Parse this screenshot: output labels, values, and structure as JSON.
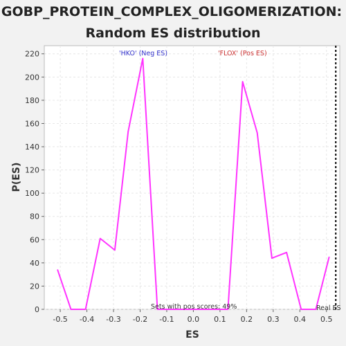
{
  "chart_data": {
    "type": "line",
    "title": "GOBP_PROTEIN_COMPLEX_OLIGOMERIZATION: Random ES distribution",
    "title_lines": [
      "GOBP_PROTEIN_COMPLEX_OLIGOMERIZATION:",
      "Random ES distribution"
    ],
    "xlabel": "ES",
    "ylabel": "P(ES)",
    "xlim": [
      -0.56,
      0.55
    ],
    "ylim": [
      0,
      227
    ],
    "x_ticks": [
      -0.5,
      -0.4,
      -0.3,
      -0.2,
      -0.1,
      0.0,
      0.1,
      0.2,
      0.3,
      0.4,
      0.5
    ],
    "x_tick_labels": [
      "-0.5",
      "-0.4",
      "-0.3",
      "-0.2",
      "-0.1",
      "0.0",
      "0.1",
      "0.2",
      "0.3",
      "0.4",
      "0.5"
    ],
    "y_ticks": [
      0,
      20,
      40,
      60,
      80,
      100,
      120,
      140,
      160,
      180,
      200,
      220
    ],
    "y_tick_labels": [
      "0",
      "20",
      "40",
      "60",
      "80",
      "100",
      "120",
      "140",
      "160",
      "180",
      "200",
      "220"
    ],
    "grid": true,
    "series": [
      {
        "color": "#ff33ff",
        "x": [
          -0.51,
          -0.46,
          -0.405,
          -0.35,
          -0.295,
          -0.245,
          -0.19,
          -0.135,
          -0.08,
          0.13,
          0.185,
          0.24,
          0.295,
          0.35,
          0.405,
          0.46,
          0.51
        ],
        "y": [
          34,
          0,
          0,
          61,
          51,
          153,
          216,
          0,
          0,
          0,
          196,
          152,
          44,
          49,
          0,
          0,
          45
        ]
      }
    ],
    "real_es": 0.535,
    "annotations": {
      "neg_label": "'HKO' (Neg ES)",
      "pos_label": "'FLOX' (Pos ES)",
      "sets_text": "Sets with pos scores: 49%",
      "real_es_text": "Real ES"
    },
    "colors": {
      "line": "#ff33ff",
      "neg_label": "#3333cc",
      "pos_label": "#cc3333",
      "real_es_line": "#000000",
      "plot_background": "#ffffff",
      "page_background": "#f2f2f2"
    }
  }
}
